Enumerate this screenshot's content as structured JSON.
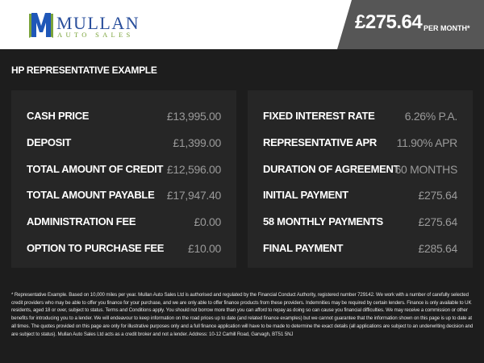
{
  "header": {
    "brand_line1": "MULLAN",
    "brand_line2": "AUTO SALES",
    "monthly_price": "£275.64",
    "per_month_label": "PER MONTH*"
  },
  "section_title": "HP REPRESENTATIVE EXAMPLE",
  "left_rows": [
    {
      "label": "CASH PRICE",
      "value": "£13,995.00"
    },
    {
      "label": "DEPOSIT",
      "value": "£1,399.00"
    },
    {
      "label": "TOTAL AMOUNT OF CREDIT",
      "value": "£12,596.00"
    },
    {
      "label": "TOTAL AMOUNT PAYABLE",
      "value": "£17,947.40"
    },
    {
      "label": "ADMINISTRATION FEE",
      "value": "£0.00"
    },
    {
      "label": "OPTION TO PURCHASE FEE",
      "value": "£10.00"
    }
  ],
  "right_rows": [
    {
      "label": "FIXED INTEREST RATE",
      "value": "6.26% P.A."
    },
    {
      "label": "REPRESENTATIVE APR",
      "value": "11.90% APR"
    },
    {
      "label": "DURATION OF AGREEMENT",
      "value": "60 MONTHS"
    },
    {
      "label": "INITIAL PAYMENT",
      "value": "£275.64"
    },
    {
      "label": "58 MONTHLY PAYMENTS",
      "value": "£275.64"
    },
    {
      "label": "FINAL PAYMENT",
      "value": "£285.64"
    }
  ],
  "disclaimer": "* Representative Example. Based on 10,000 miles per year. Mullan Auto Sales Ltd is authorised and regulated by the Financial Conduct Authority, registered number 729142. We work with a number of carefully selected credit providers who may be able to offer you finance for your purchase, and we are only able to offer finance products from these providers. Indemnities may be required by certain lenders. Finance is only available to UK residents, aged 18 or over, subject to status. Terms and Conditions apply. You should not borrow more than you can afford to repay as doing so can cause you financial difficulties. We may receive a commission or other benefits for introducing you to a lender. We will endeavour to keep information on the road prices up to date (and related finance examples) but we cannot guarantee that the information shown on this page is up to date at all times. The quotes provided on this page are only for illustrative purposes only and a full finance application will have to be made to determine the exact details (all applications are subject to an underwriting decision and are subject to status). Mullan Auto Sales Ltd acts as a credit broker and not a lender. Address: 10-12 Carhill Road, Garvagh, BT51 5NJ",
  "colors": {
    "brand_blue": "#2a4f9c",
    "brand_green": "#7aa33a",
    "background": "#1d1d1d",
    "panel": "#262626",
    "price_box": "#565656"
  }
}
